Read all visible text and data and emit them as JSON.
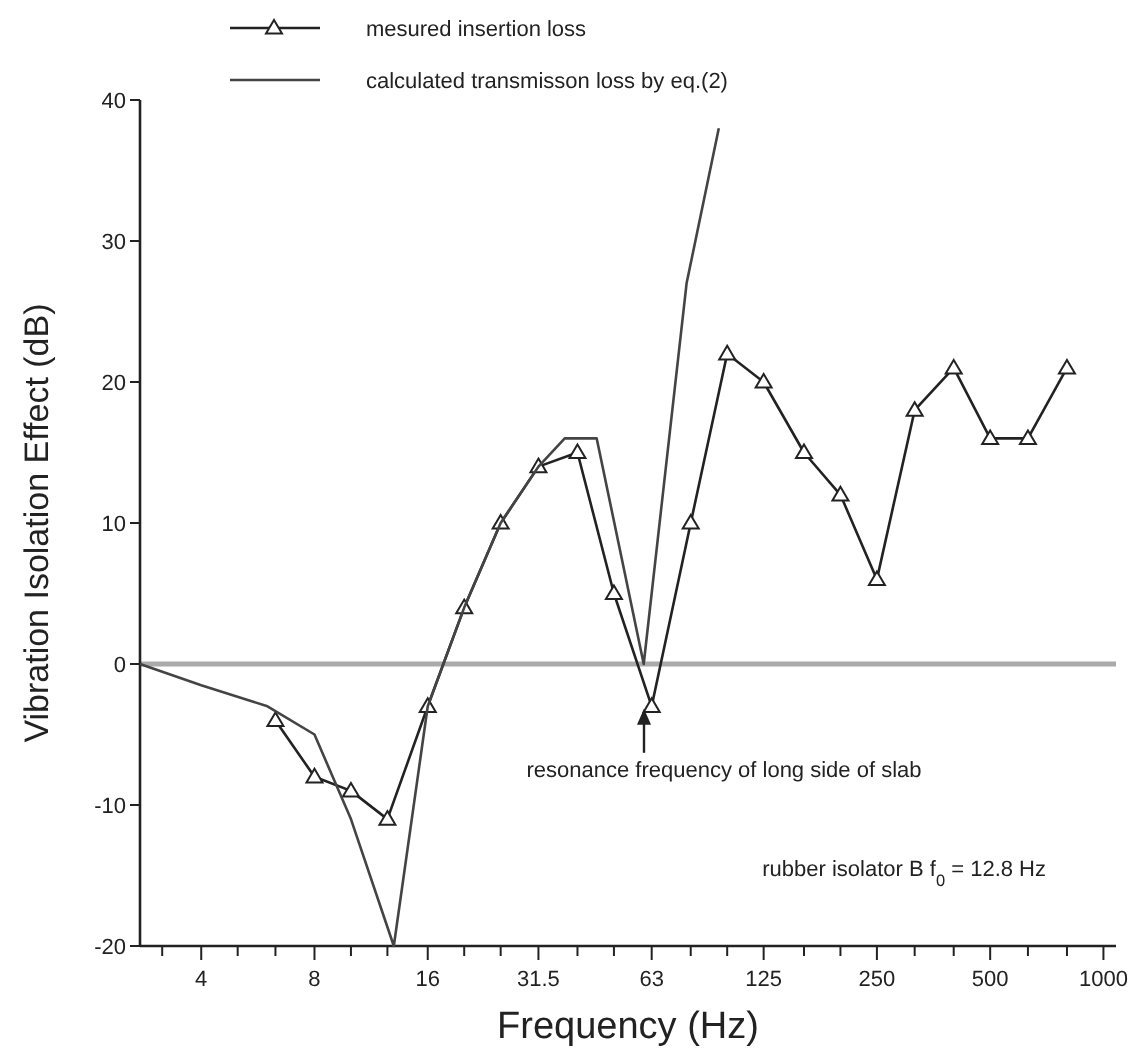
{
  "chart_data": {
    "type": "line",
    "xlabel": "Frequency    (Hz)",
    "ylabel": "Vibration Isolation Effect  (dB)",
    "log": "x",
    "xlim": [
      2.75,
      1080
    ],
    "ylim": [
      -20,
      40
    ],
    "xticks": [
      {
        "value": 3.15,
        "label": null
      },
      4,
      {
        "value": 5,
        "label": null
      },
      {
        "value": 6.3,
        "label": null
      },
      8,
      {
        "value": 10,
        "label": null
      },
      {
        "value": 12.5,
        "label": null
      },
      16,
      {
        "value": 20,
        "label": null
      },
      {
        "value": 25,
        "label": null
      },
      31.5,
      {
        "value": 40,
        "label": null
      },
      {
        "value": 50,
        "label": null
      },
      63,
      {
        "value": 80,
        "label": null
      },
      {
        "value": 100,
        "label": null
      },
      125,
      {
        "value": 160,
        "label": null
      },
      {
        "value": 200,
        "label": null
      },
      250,
      {
        "value": 315,
        "label": null
      },
      {
        "value": 400,
        "label": null
      },
      500,
      {
        "value": 630,
        "label": null
      },
      {
        "value": 800,
        "label": null
      },
      1000
    ],
    "yticks": [
      -20,
      -10,
      0,
      10,
      20,
      30,
      40
    ],
    "grid": false,
    "legend": "top left",
    "series": [
      {
        "name": "mesured insertion loss",
        "color": "#222222",
        "marker": "triangle",
        "x": [
          6.3,
          8,
          10,
          12.5,
          16,
          20,
          25,
          31.5,
          40,
          50,
          63,
          80,
          100,
          125,
          160,
          200,
          250,
          315,
          400,
          500,
          630,
          800
        ],
        "values": [
          -4,
          -8,
          -9,
          -11,
          -3,
          4,
          10,
          14,
          15,
          5,
          -3,
          10,
          22,
          20,
          15,
          12,
          6,
          18,
          21,
          16,
          16,
          21
        ]
      },
      {
        "name": "calculated transmisson loss by eq.(2)",
        "color": "#444444",
        "marker": "none",
        "x": [
          2.75,
          4,
          6,
          8,
          10,
          13,
          16,
          20,
          25,
          31.5,
          37,
          45,
          60,
          78,
          95
        ],
        "values": [
          0,
          -1.5,
          -3,
          -5,
          -11,
          -20,
          -3,
          4,
          10,
          14,
          16,
          16,
          0,
          27,
          38
        ]
      }
    ],
    "ref_lines": [
      {
        "axis": "y",
        "value": 0,
        "color": "#aaaaaa"
      }
    ],
    "annotations": [
      "resonance frequency of long side of slab",
      "rubber isolator B  f$_{0}$  = 12.8 Hz"
    ]
  }
}
